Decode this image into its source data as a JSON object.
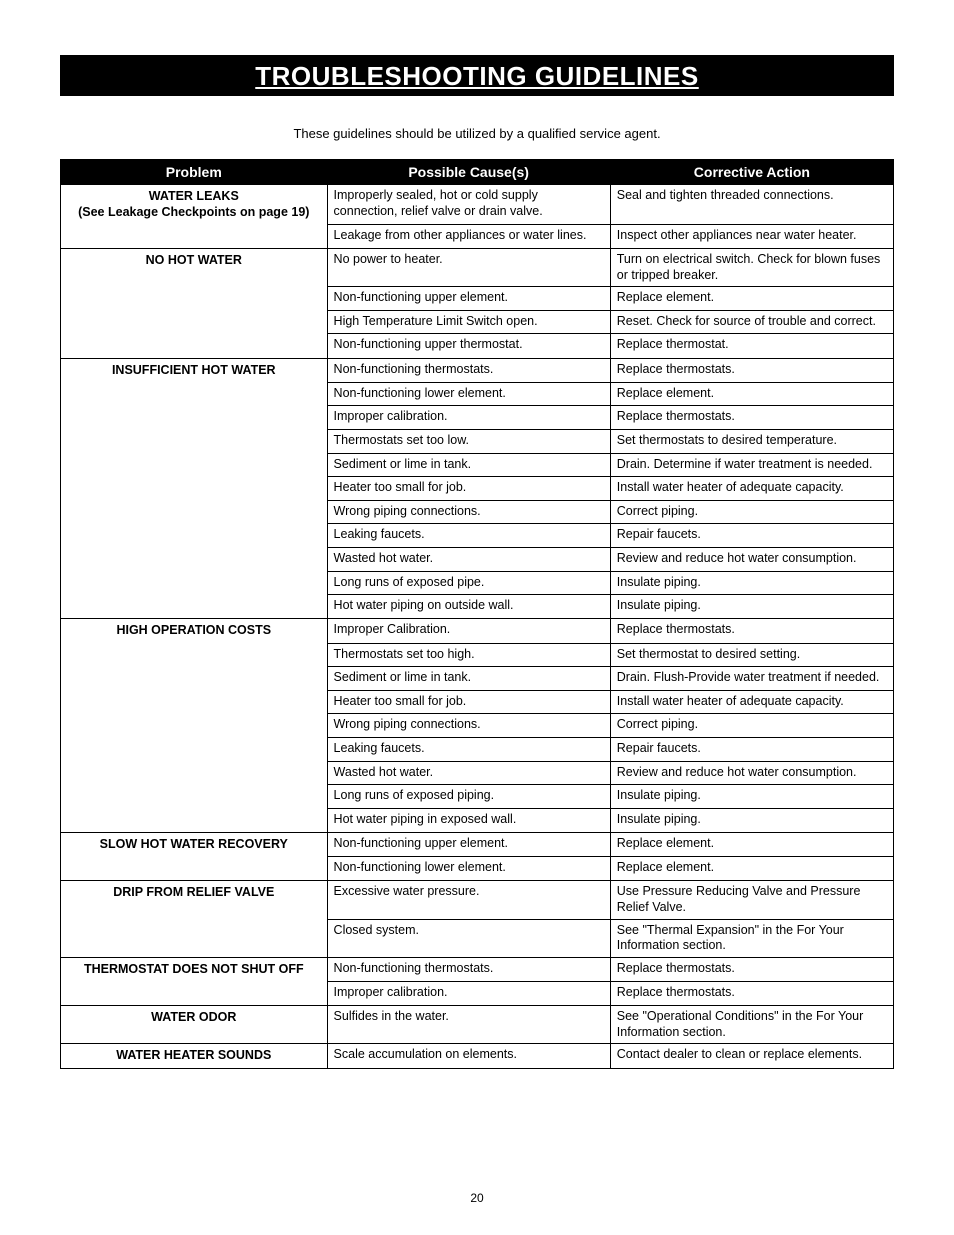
{
  "title": "TROUBLESHOOTING GUIDELINES",
  "subtitle": "These guidelines should be utilized by a qualified service agent.",
  "page_number": "20",
  "headers": {
    "problem": "Problem",
    "cause": "Possible Cause(s)",
    "action": "Corrective Action"
  },
  "col_widths": {
    "problem": "32%",
    "cause": "34%",
    "action": "34%"
  },
  "problems": [
    {
      "label_main": "WATER LEAKS",
      "label_sub": "(See Leakage Checkpoints on page 19)",
      "rows": [
        {
          "cause": "Improperly sealed, hot or cold supply connection, relief valve or drain valve.",
          "action": "Seal and tighten threaded connections."
        },
        {
          "cause": "Leakage from other appliances or water lines.",
          "action": "Inspect other appliances near water heater."
        }
      ]
    },
    {
      "label_main": "NO HOT WATER",
      "rows": [
        {
          "cause": "No power to heater.",
          "action": "Turn on electrical switch. Check for blown fuses or tripped breaker."
        },
        {
          "cause": "Non-functioning upper element.",
          "action": "Replace element."
        },
        {
          "cause": "High Temperature Limit Switch open.",
          "action": "Reset. Check for source of trouble and correct."
        },
        {
          "cause": "Non-functioning upper thermostat.",
          "action": "Replace thermostat."
        }
      ]
    },
    {
      "label_main": "INSUFFICIENT HOT WATER",
      "rows": [
        {
          "cause": "Non-functioning thermostats.",
          "action": "Replace thermostats."
        },
        {
          "cause": "Non-functioning lower element.",
          "action": "Replace element."
        },
        {
          "cause": "Improper calibration.",
          "action": "Replace thermostats."
        },
        {
          "cause": "Thermostats set too low.",
          "action": "Set thermostats to desired temperature."
        },
        {
          "cause": "Sediment or lime in tank.",
          "action": "Drain. Determine if water treatment is needed."
        },
        {
          "cause": "Heater too small for job.",
          "action": "Install water heater of adequate capacity."
        },
        {
          "cause": "Wrong piping connections.",
          "action": "Correct piping."
        },
        {
          "cause": "Leaking faucets.",
          "action": "Repair faucets."
        },
        {
          "cause": "Wasted hot water.",
          "action": "Review and reduce hot water consumption."
        },
        {
          "cause": "Long runs of exposed pipe.",
          "action": "Insulate piping."
        },
        {
          "cause": "Hot water piping on outside wall.",
          "action": "Insulate piping."
        }
      ]
    },
    {
      "label_main": "HIGH OPERATION COSTS",
      "rows": [
        {
          "cause": "Improper Calibration.",
          "action": "Replace thermostats."
        },
        {
          "cause": "Thermostats set too high.",
          "action": "Set thermostat to desired setting."
        },
        {
          "cause": "Sediment or lime in tank.",
          "action": "Drain. Flush-Provide water treatment if needed."
        },
        {
          "cause": "Heater too small for job.",
          "action": "Install water heater of adequate capacity."
        },
        {
          "cause": "Wrong piping connections.",
          "action": "Correct piping."
        },
        {
          "cause": "Leaking faucets.",
          "action": "Repair faucets."
        },
        {
          "cause": "Wasted hot water.",
          "action": "Review and reduce hot water consumption."
        },
        {
          "cause": "Long runs of exposed piping.",
          "action": "Insulate piping."
        },
        {
          "cause": "Hot water piping in exposed wall.",
          "action": "Insulate piping."
        }
      ]
    },
    {
      "label_main": "SLOW HOT WATER RECOVERY",
      "rows": [
        {
          "cause": "Non-functioning upper element.",
          "action": "Replace element."
        },
        {
          "cause": "Non-functioning lower element.",
          "action": "Replace element."
        }
      ]
    },
    {
      "label_main": "DRIP FROM RELIEF VALVE",
      "rows": [
        {
          "cause": "Excessive water pressure.",
          "action": "Use Pressure Reducing Valve and Pressure Relief Valve."
        },
        {
          "cause": "Closed system.",
          "action": "See \"Thermal Expansion\" in the For Your Information section."
        }
      ]
    },
    {
      "label_main": "THERMOSTAT DOES NOT SHUT OFF",
      "rows": [
        {
          "cause": "Non-functioning thermostats.",
          "action": "Replace thermostats."
        },
        {
          "cause": "Improper calibration.",
          "action": "Replace thermostats."
        }
      ]
    },
    {
      "label_main": "WATER ODOR",
      "rows": [
        {
          "cause": "Sulfides in the water.",
          "action": "See \"Operational Conditions\" in the For Your Information section."
        }
      ]
    },
    {
      "label_main": "WATER HEATER SOUNDS",
      "rows": [
        {
          "cause": "Scale accumulation on elements.",
          "action": "Contact dealer to clean or replace elements."
        }
      ]
    }
  ]
}
